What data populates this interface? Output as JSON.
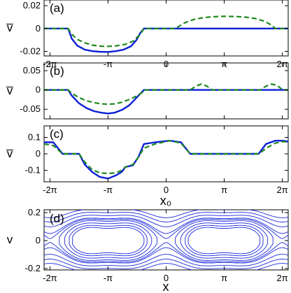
{
  "colors": {
    "solid": "#0a1fd6",
    "dashed": "#1f8a1f",
    "orbit": "#1a2bd9",
    "axis": "#000000"
  },
  "x_tick_labels": [
    "-2π",
    "-π",
    "0",
    "π",
    "2π"
  ],
  "x_ticks": [
    -6.2832,
    -3.1416,
    0,
    3.1416,
    6.2832
  ],
  "chart_data": [
    {
      "panel": "(a)",
      "type": "line",
      "ylabel": "v̅",
      "xlabel": "",
      "xlim": [
        -6.6,
        6.6
      ],
      "ylim": [
        -0.024,
        0.025
      ],
      "yticks": [
        -0.02,
        0,
        0.02
      ],
      "ytick_labels": [
        "-0.02",
        "0",
        "0.02"
      ],
      "series": [
        {
          "style": "solid",
          "x": [
            -6.6,
            -5.3,
            -5.1,
            -4.8,
            -4.4,
            -4.0,
            -3.6,
            -3.14,
            -2.7,
            -2.3,
            -1.9,
            -1.6,
            -1.4,
            -1.2,
            6.6
          ],
          "y": [
            0,
            0,
            -0.009,
            -0.015,
            -0.0185,
            -0.0198,
            -0.0203,
            -0.0205,
            -0.0198,
            -0.0185,
            -0.0155,
            -0.01,
            -0.004,
            0,
            0
          ]
        },
        {
          "style": "dashed",
          "x": [
            -6.6,
            -5.3,
            -5.1,
            -4.8,
            -4.4,
            -4.0,
            -3.5,
            -3.14,
            -2.7,
            -2.2,
            -1.8,
            -1.4,
            -1.2,
            0.5,
            0.7,
            1.0,
            1.5,
            2.0,
            2.5,
            3.14,
            3.8,
            4.3,
            4.8,
            5.3,
            5.7,
            5.9,
            6.6
          ],
          "y": [
            0,
            0,
            -0.005,
            -0.0095,
            -0.0125,
            -0.0145,
            -0.0155,
            -0.0156,
            -0.0152,
            -0.0138,
            -0.0112,
            -0.005,
            0,
            0,
            0.002,
            0.005,
            0.008,
            0.0095,
            0.0103,
            0.0107,
            0.0105,
            0.01,
            0.0088,
            0.0065,
            0.003,
            0,
            0
          ]
        }
      ]
    },
    {
      "panel": "(b)",
      "type": "line",
      "ylabel": "v̅",
      "xlabel": "",
      "xlim": [
        -6.6,
        6.6
      ],
      "ylim": [
        -0.075,
        0.07
      ],
      "yticks": [
        -0.05,
        0,
        0.05
      ],
      "ytick_labels": [
        "-0.05",
        "0",
        "0.05"
      ],
      "series": [
        {
          "style": "solid",
          "x": [
            -6.6,
            -5.3,
            -5.1,
            -4.7,
            -4.3,
            -3.9,
            -3.5,
            -3.14,
            -2.8,
            -2.4,
            -2.0,
            -1.7,
            -1.4,
            -1.2,
            6.6
          ],
          "y": [
            0,
            0,
            -0.015,
            -0.035,
            -0.047,
            -0.055,
            -0.059,
            -0.061,
            -0.059,
            -0.052,
            -0.04,
            -0.025,
            -0.01,
            0,
            0
          ]
        },
        {
          "style": "dashed",
          "x": [
            -6.6,
            -5.3,
            -5.1,
            -4.7,
            -4.3,
            -3.9,
            -3.5,
            -3.14,
            -2.8,
            -2.4,
            -2.0,
            -1.6,
            -1.3,
            -1.2,
            1.3,
            1.6,
            1.9,
            2.2,
            2.5,
            5.1,
            5.4,
            5.7,
            6.0,
            6.3,
            6.6
          ],
          "y": [
            0,
            0,
            -0.009,
            -0.02,
            -0.028,
            -0.033,
            -0.036,
            -0.037,
            -0.036,
            -0.032,
            -0.025,
            -0.016,
            -0.007,
            0,
            0,
            0.01,
            0.015,
            0.01,
            0,
            0,
            0.01,
            0.015,
            0.012,
            0,
            0
          ]
        }
      ]
    },
    {
      "panel": "(c)",
      "type": "line",
      "ylabel": "v̅",
      "xlabel": "x₀",
      "xlim": [
        -6.6,
        6.6
      ],
      "ylim": [
        -0.17,
        0.17
      ],
      "yticks": [
        -0.1,
        0,
        0.1
      ],
      "ytick_labels": [
        "-0.1",
        "0",
        "0.1"
      ],
      "series": [
        {
          "style": "solid",
          "x": [
            -6.6,
            -6.1,
            -5.6,
            -4.7,
            -4.4,
            -4.0,
            -3.6,
            -3.14,
            -2.7,
            -2.4,
            -2.2,
            -1.8,
            -1.5,
            -1.2,
            -0.6,
            0.2,
            0.8,
            1.3,
            5.0,
            5.4,
            5.9,
            6.3,
            6.6
          ],
          "y": [
            0.07,
            0.07,
            0,
            0,
            -0.065,
            -0.11,
            -0.14,
            -0.15,
            -0.13,
            -0.11,
            -0.08,
            -0.07,
            -0.02,
            0.06,
            0.07,
            0.08,
            0.07,
            0,
            0,
            0.06,
            0.08,
            0.08,
            0.075
          ]
        },
        {
          "style": "dashed",
          "x": [
            -6.6,
            -6.1,
            -5.6,
            -4.7,
            -4.4,
            -4.0,
            -3.6,
            -3.14,
            -2.7,
            -2.4,
            -2.2,
            -1.8,
            -1.5,
            -1.2,
            -0.6,
            0.2,
            0.8,
            1.3,
            5.0,
            5.5,
            5.9,
            6.3,
            6.6
          ],
          "y": [
            0.06,
            0.05,
            0,
            0,
            -0.05,
            -0.095,
            -0.115,
            -0.12,
            -0.115,
            -0.1,
            -0.08,
            -0.065,
            -0.02,
            0.035,
            0.06,
            0.08,
            0.065,
            0,
            0,
            0.04,
            0.065,
            0.075,
            0.07
          ]
        }
      ]
    },
    {
      "panel": "(d)",
      "type": "line",
      "ylabel": "v",
      "xlabel": "x",
      "xlim": [
        -6.6,
        6.6
      ],
      "ylim": [
        -0.21,
        0.22
      ],
      "yticks": [
        -0.2,
        0,
        0.2
      ],
      "ytick_labels": [
        "-0.2",
        "0",
        "0.2"
      ],
      "series": []
    }
  ]
}
